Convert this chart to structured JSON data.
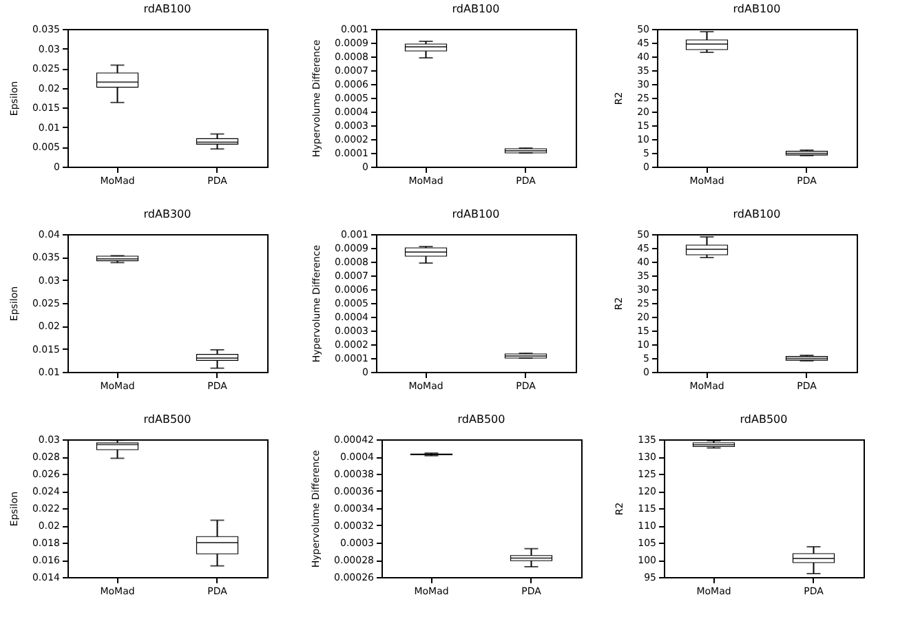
{
  "chart_data": [
    {
      "type": "box",
      "title": "rdAB100",
      "ylabel": "Epsilon",
      "categories": [
        "MoMad",
        "PDA"
      ],
      "ylim": [
        0,
        0.035
      ],
      "yticks": [
        0,
        0.005,
        0.01,
        0.015,
        0.02,
        0.025,
        0.03,
        0.035
      ],
      "boxes": [
        {
          "low": 0.0163,
          "q1": 0.0202,
          "median": 0.0215,
          "q3": 0.0238,
          "high": 0.0258
        },
        {
          "low": 0.0045,
          "q1": 0.0057,
          "median": 0.0062,
          "q3": 0.0071,
          "high": 0.0083
        }
      ]
    },
    {
      "type": "box",
      "title": "rdAB100",
      "ylabel": "Hypervolume Difference",
      "categories": [
        "MoMad",
        "PDA"
      ],
      "ylim": [
        0,
        0.001
      ],
      "yticks": [
        0,
        0.0001,
        0.0002,
        0.0003,
        0.0004,
        0.0005,
        0.0006,
        0.0007,
        0.0008,
        0.0009,
        0.001
      ],
      "boxes": [
        {
          "low": 0.00079,
          "q1": 0.00084,
          "median": 0.00087,
          "q3": 0.00089,
          "high": 0.00091
        },
        {
          "low": 0.0001,
          "q1": 0.0001,
          "median": 0.000115,
          "q3": 0.00013,
          "high": 0.000135
        }
      ]
    },
    {
      "type": "box",
      "title": "rdAB100",
      "ylabel": "R2",
      "categories": [
        "MoMad",
        "PDA"
      ],
      "ylim": [
        0,
        50
      ],
      "yticks": [
        0,
        5,
        10,
        15,
        20,
        25,
        30,
        35,
        40,
        45,
        50
      ],
      "boxes": [
        {
          "low": 41.5,
          "q1": 42.5,
          "median": 44.5,
          "q3": 46,
          "high": 49
        },
        {
          "low": 4,
          "q1": 4.2,
          "median": 4.8,
          "q3": 5.6,
          "high": 6
        }
      ]
    },
    {
      "type": "box",
      "title": "rdAB300",
      "ylabel": "Epsilon",
      "categories": [
        "MoMad",
        "PDA"
      ],
      "ylim": [
        0.01,
        0.04
      ],
      "yticks": [
        0.01,
        0.015,
        0.02,
        0.025,
        0.03,
        0.035,
        0.04
      ],
      "boxes": [
        {
          "low": 0.0338,
          "q1": 0.0342,
          "median": 0.0346,
          "q3": 0.0352,
          "high": 0.0353
        },
        {
          "low": 0.0108,
          "q1": 0.0125,
          "median": 0.013,
          "q3": 0.0138,
          "high": 0.0148
        }
      ]
    },
    {
      "type": "box",
      "title": "rdAB100",
      "ylabel": "Hypervolume Difference",
      "categories": [
        "MoMad",
        "PDA"
      ],
      "ylim": [
        0,
        0.001
      ],
      "yticks": [
        0,
        0.0001,
        0.0002,
        0.0003,
        0.0004,
        0.0005,
        0.0006,
        0.0007,
        0.0008,
        0.0009,
        0.001
      ],
      "boxes": [
        {
          "low": 0.00079,
          "q1": 0.00084,
          "median": 0.00087,
          "q3": 0.0009,
          "high": 0.00091
        },
        {
          "low": 0.0001,
          "q1": 0.0001,
          "median": 0.000115,
          "q3": 0.00013,
          "high": 0.000135
        }
      ]
    },
    {
      "type": "box",
      "title": "rdAB100",
      "ylabel": "R2",
      "categories": [
        "MoMad",
        "PDA"
      ],
      "ylim": [
        0,
        50
      ],
      "yticks": [
        0,
        5,
        10,
        15,
        20,
        25,
        30,
        35,
        40,
        45,
        50
      ],
      "boxes": [
        {
          "low": 41.5,
          "q1": 42.5,
          "median": 44.5,
          "q3": 46,
          "high": 49
        },
        {
          "low": 4,
          "q1": 4.2,
          "median": 4.9,
          "q3": 5.6,
          "high": 6
        }
      ]
    },
    {
      "type": "box",
      "title": "rdAB500",
      "ylabel": "Epsilon",
      "categories": [
        "MoMad",
        "PDA"
      ],
      "ylim": [
        0.014,
        0.03
      ],
      "yticks": [
        0.014,
        0.016,
        0.018,
        0.02,
        0.022,
        0.024,
        0.026,
        0.028,
        0.03
      ],
      "boxes": [
        {
          "low": 0.0278,
          "q1": 0.0288,
          "median": 0.0294,
          "q3": 0.0296,
          "high": 0.0299
        },
        {
          "low": 0.0153,
          "q1": 0.0167,
          "median": 0.018,
          "q3": 0.0187,
          "high": 0.0206
        }
      ]
    },
    {
      "type": "box",
      "title": "rdAB500",
      "ylabel": "Hypervolume Difference",
      "categories": [
        "MoMad",
        "PDA"
      ],
      "ylim": [
        0.00026,
        0.00042
      ],
      "yticks": [
        0.00026,
        0.00028,
        0.0003,
        0.00032,
        0.00034,
        0.00036,
        0.00038,
        0.0004,
        0.00042
      ],
      "boxes": [
        {
          "low": 0.000401,
          "q1": 0.000402,
          "median": 0.0004025,
          "q3": 0.000403,
          "high": 0.000404
        },
        {
          "low": 0.000272,
          "q1": 0.000279,
          "median": 0.000282,
          "q3": 0.000285,
          "high": 0.000293
        }
      ]
    },
    {
      "type": "box",
      "title": "rdAB500",
      "ylabel": "R2",
      "categories": [
        "MoMad",
        "PDA"
      ],
      "ylim": [
        95,
        135
      ],
      "yticks": [
        95,
        100,
        105,
        110,
        115,
        120,
        125,
        130,
        135
      ],
      "boxes": [
        {
          "low": 132.5,
          "q1": 132.9,
          "median": 133.4,
          "q3": 134,
          "high": 134.6
        },
        {
          "low": 96,
          "q1": 99.2,
          "median": 100.4,
          "q3": 101.8,
          "high": 103.8
        }
      ]
    }
  ]
}
